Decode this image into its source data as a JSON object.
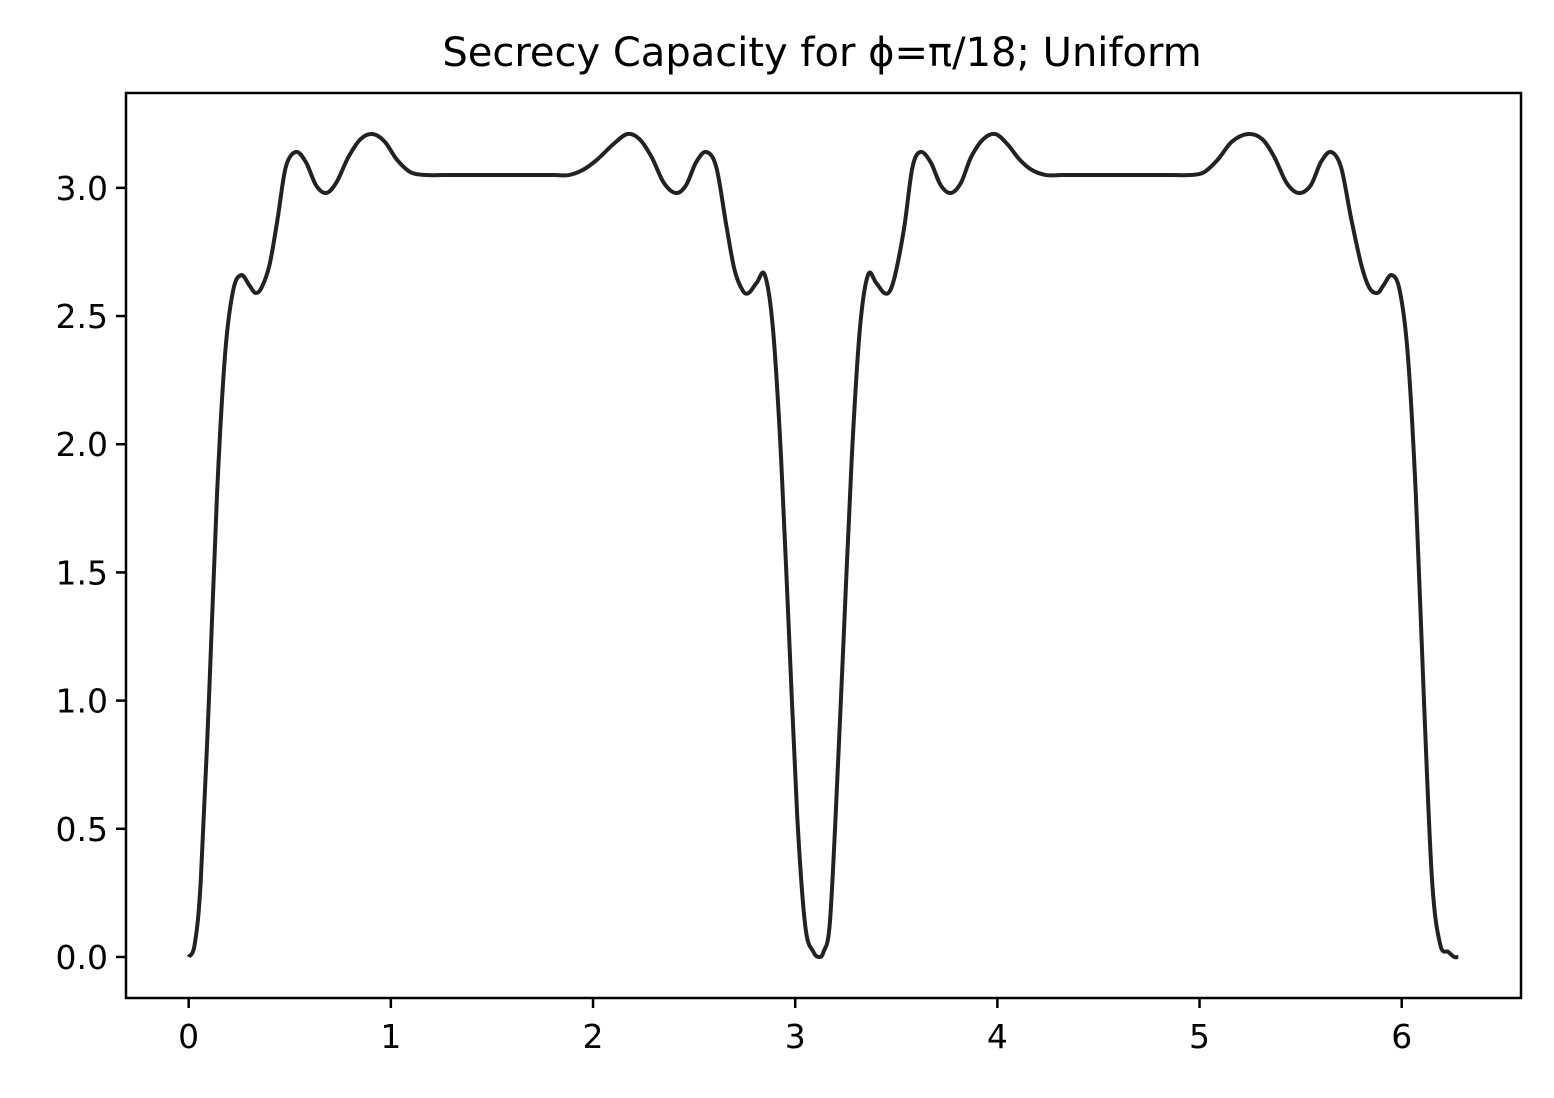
{
  "chart_data": {
    "type": "line",
    "title": "Secrecy Capacity for ϕ=π/18; Uniform",
    "xlabel": "",
    "ylabel": "",
    "xlim": [
      -0.31,
      6.59
    ],
    "ylim": [
      -0.16,
      3.37
    ],
    "grid": false,
    "legend": "none",
    "x_ticks": [
      0,
      1,
      2,
      3,
      4,
      5,
      6
    ],
    "x_tick_labels": [
      "0",
      "1",
      "2",
      "3",
      "4",
      "5",
      "6"
    ],
    "y_ticks": [
      0.0,
      0.5,
      1.0,
      1.5,
      2.0,
      2.5,
      3.0
    ],
    "y_tick_labels": [
      "0.0",
      "0.5",
      "1.0",
      "1.5",
      "2.0",
      "2.5",
      "3.0"
    ],
    "series": [
      {
        "color": "#222222",
        "x": [
          0.0,
          0.03,
          0.06,
          0.1,
          0.14,
          0.18,
          0.22,
          0.26,
          0.3,
          0.33,
          0.36,
          0.4,
          0.44,
          0.48,
          0.53,
          0.58,
          0.63,
          0.68,
          0.73,
          0.79,
          0.85,
          0.91,
          0.97,
          1.03,
          1.1,
          1.18,
          1.26,
          1.34,
          1.42,
          1.5,
          1.57,
          1.65,
          1.73,
          1.81,
          1.88,
          1.95,
          2.02,
          2.1,
          2.17,
          2.23,
          2.29,
          2.35,
          2.41,
          2.46,
          2.51,
          2.56,
          2.61,
          2.66,
          2.7,
          2.74,
          2.77,
          2.81,
          2.85,
          2.89,
          2.93,
          2.97,
          3.01,
          3.05,
          3.09,
          3.12,
          3.14,
          3.17,
          3.2,
          3.24,
          3.28,
          3.32,
          3.36,
          3.4,
          3.44,
          3.47,
          3.5,
          3.54,
          3.58,
          3.62,
          3.67,
          3.72,
          3.77,
          3.82,
          3.87,
          3.93,
          3.99,
          4.05,
          4.11,
          4.17,
          4.24,
          4.32,
          4.4,
          4.48,
          4.56,
          4.64,
          4.71,
          4.79,
          4.87,
          4.95,
          5.02,
          5.09,
          5.16,
          5.24,
          5.31,
          5.37,
          5.43,
          5.49,
          5.55,
          5.6,
          5.65,
          5.7,
          5.75,
          5.8,
          5.84,
          5.88,
          5.91,
          5.95,
          5.99,
          6.03,
          6.07,
          6.11,
          6.15,
          6.19,
          6.23,
          6.26,
          6.28
        ],
        "y": [
          0.0,
          0.05,
          0.3,
          1.0,
          1.8,
          2.35,
          2.6,
          2.66,
          2.62,
          2.59,
          2.61,
          2.7,
          2.88,
          3.08,
          3.14,
          3.1,
          3.01,
          2.98,
          3.02,
          3.12,
          3.19,
          3.21,
          3.18,
          3.11,
          3.06,
          3.05,
          3.05,
          3.05,
          3.05,
          3.05,
          3.05,
          3.05,
          3.05,
          3.05,
          3.05,
          3.07,
          3.11,
          3.17,
          3.21,
          3.19,
          3.12,
          3.02,
          2.98,
          3.01,
          3.1,
          3.14,
          3.08,
          2.85,
          2.68,
          2.6,
          2.59,
          2.63,
          2.66,
          2.45,
          1.95,
          1.25,
          0.55,
          0.12,
          0.02,
          0.0,
          0.02,
          0.12,
          0.55,
          1.25,
          1.95,
          2.45,
          2.66,
          2.63,
          2.59,
          2.6,
          2.68,
          2.85,
          3.08,
          3.14,
          3.1,
          3.01,
          2.98,
          3.02,
          3.12,
          3.19,
          3.21,
          3.17,
          3.11,
          3.07,
          3.05,
          3.05,
          3.05,
          3.05,
          3.05,
          3.05,
          3.05,
          3.05,
          3.05,
          3.05,
          3.06,
          3.11,
          3.18,
          3.21,
          3.19,
          3.12,
          3.02,
          2.98,
          3.01,
          3.1,
          3.14,
          3.08,
          2.88,
          2.7,
          2.61,
          2.59,
          2.62,
          2.66,
          2.6,
          2.35,
          1.8,
          1.0,
          0.3,
          0.05,
          0.02,
          0.0,
          0.0
        ]
      }
    ]
  }
}
